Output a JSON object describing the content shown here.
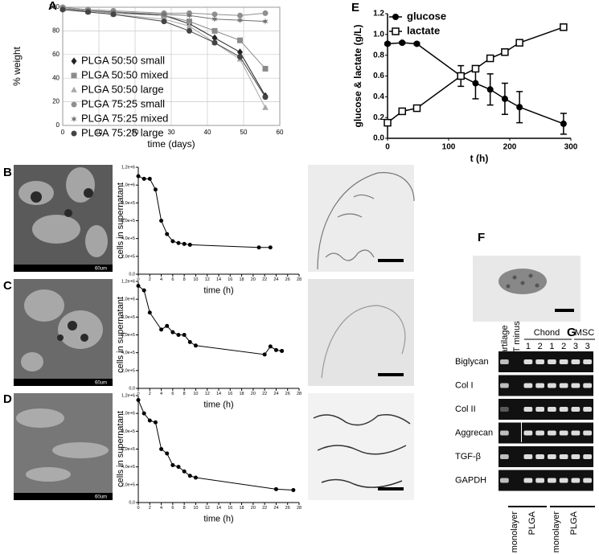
{
  "panel_labels": [
    "A",
    "B",
    "C",
    "D",
    "E",
    "F",
    "G"
  ],
  "sem_scale_labels": [
    "60um",
    "60um",
    "60um"
  ],
  "gel": {
    "columns": [
      "cartilage",
      "RT minus"
    ],
    "groups": [
      "Chond",
      "MSC"
    ],
    "lanes": [
      "1",
      "2",
      "1",
      "2",
      "3",
      "3"
    ],
    "rows": [
      "Biglycan",
      "Col I",
      "Col II",
      "Aggrecan",
      "TGF-β",
      "GAPDH"
    ],
    "conditions": [
      "monolayer",
      "PLGA",
      "monolayer",
      "PLGA"
    ]
  },
  "chart_data": [
    {
      "type": "line",
      "xlabel": "time (days)",
      "ylabel": "% weight",
      "x": [
        0,
        7,
        14,
        28,
        35,
        42,
        49,
        56
      ],
      "xlim": [
        0,
        60
      ],
      "xticks": [
        0,
        10,
        20,
        30,
        40,
        50,
        60
      ],
      "ylim": [
        0,
        100
      ],
      "yticks": [
        0,
        20,
        40,
        60,
        80,
        100
      ],
      "grid": true,
      "legend": "lower left",
      "series": [
        {
          "name": "PLGA 50:50 small",
          "color": "#222222",
          "marker": "diamond",
          "values": [
            99,
            97,
            96,
            93,
            86,
            74,
            62,
            25
          ]
        },
        {
          "name": "PLGA 50:50 mixed",
          "color": "#8a8a8a",
          "marker": "square",
          "values": [
            99,
            97,
            95,
            93,
            88,
            80,
            72,
            48
          ]
        },
        {
          "name": "PLGA 50:50 large",
          "color": "#a8a8a8",
          "marker": "triangle",
          "values": [
            99,
            96,
            94,
            90,
            84,
            70,
            56,
            15
          ]
        },
        {
          "name": "PLGA 75:25 small",
          "color": "#8f8f8f",
          "marker": "circle",
          "values": [
            100,
            98,
            97,
            95,
            95,
            94,
            93,
            95
          ]
        },
        {
          "name": "PLGA 75:25 mixed",
          "color": "#707070",
          "marker": "star",
          "values": [
            99,
            97,
            96,
            94,
            93,
            90,
            89,
            88
          ]
        },
        {
          "name": "PLGA 75:25 large",
          "color": "#444444",
          "marker": "circle",
          "values": [
            98,
            96,
            94,
            88,
            80,
            70,
            58,
            24
          ]
        }
      ]
    },
    {
      "type": "line",
      "xlabel": "time (h)",
      "ylabel": "cells in supernatant",
      "color": "#000000",
      "marker": "circle",
      "x": [
        0,
        1,
        2,
        3,
        4,
        5,
        6,
        7,
        8,
        9,
        21,
        23
      ],
      "values": [
        1100000,
        1070000,
        1070000,
        950000,
        600000,
        450000,
        370000,
        350000,
        340000,
        330000,
        300000,
        300000
      ],
      "xlim": [
        0,
        28
      ],
      "xticks": [
        0,
        2,
        4,
        6,
        8,
        10,
        12,
        14,
        16,
        18,
        20,
        22,
        24,
        26,
        28
      ],
      "ylim": [
        0,
        1200000
      ],
      "yticks": [
        {
          "value": 0,
          "label": "0,0"
        },
        {
          "value": 200000,
          "label": "2,0e+5"
        },
        {
          "value": 400000,
          "label": "4,0e+5"
        },
        {
          "value": 600000,
          "label": "6,0e+5"
        },
        {
          "value": 800000,
          "label": "8,0e+5"
        },
        {
          "value": 1000000,
          "label": "1,0e+6"
        },
        {
          "value": 1200000,
          "label": "1,2e+6"
        }
      ]
    },
    {
      "type": "line",
      "xlabel": "time (h)",
      "ylabel": "cells in supernatant",
      "color": "#000000",
      "marker": "circle",
      "x": [
        0,
        1,
        2,
        4,
        5,
        6,
        7,
        8,
        9,
        10,
        22,
        23,
        24,
        25
      ],
      "values": [
        1150000,
        1100000,
        850000,
        660000,
        700000,
        630000,
        600000,
        600000,
        520000,
        480000,
        380000,
        470000,
        430000,
        420000
      ],
      "xlim": [
        0,
        28
      ],
      "xticks": [
        0,
        2,
        4,
        6,
        8,
        10,
        12,
        14,
        16,
        18,
        20,
        22,
        24,
        26,
        28
      ],
      "ylim": [
        0,
        1200000
      ],
      "yticks": [
        {
          "value": 0,
          "label": "0,0"
        },
        {
          "value": 200000,
          "label": "2,0e+5"
        },
        {
          "value": 400000,
          "label": "4,0e+5"
        },
        {
          "value": 600000,
          "label": "6,0e+5"
        },
        {
          "value": 800000,
          "label": "8,0e+5"
        },
        {
          "value": 1000000,
          "label": "1,0e+6"
        },
        {
          "value": 1200000,
          "label": "1,2e+6"
        }
      ]
    },
    {
      "type": "line",
      "xlabel": "time (h)",
      "ylabel": "cells in supernatant",
      "color": "#000000",
      "marker": "circle",
      "x": [
        0,
        1,
        2,
        3,
        4,
        5,
        6,
        7,
        8,
        9,
        10,
        24,
        27
      ],
      "values": [
        1150000,
        1000000,
        920000,
        900000,
        600000,
        550000,
        420000,
        400000,
        350000,
        300000,
        280000,
        150000,
        140000
      ],
      "xlim": [
        0,
        28
      ],
      "xticks": [
        0,
        2,
        4,
        6,
        8,
        10,
        12,
        14,
        16,
        18,
        20,
        22,
        24,
        26,
        28
      ],
      "ylim": [
        0,
        1200000
      ],
      "yticks": [
        {
          "value": 0,
          "label": "0,0"
        },
        {
          "value": 200000,
          "label": "2,0e+5"
        },
        {
          "value": 400000,
          "label": "4,0e+5"
        },
        {
          "value": 600000,
          "label": "6,0e+5"
        },
        {
          "value": 800000,
          "label": "8,0e+5"
        },
        {
          "value": 1000000,
          "label": "1,0e+6"
        },
        {
          "value": 1200000,
          "label": "1,2e+6"
        }
      ]
    },
    {
      "type": "line",
      "xlabel": "t (h)",
      "ylabel": "glucose & lactate (g/L)",
      "legend": "upper left",
      "x": [
        0,
        24,
        48,
        120,
        144,
        168,
        192,
        216,
        288
      ],
      "xlim": [
        0,
        300
      ],
      "xticks": [
        0,
        100,
        200,
        300
      ],
      "ylim": [
        0,
        1.2
      ],
      "yticks": [
        {
          "value": 0,
          "label": "0.0"
        },
        0.2,
        0.4,
        0.6,
        0.8,
        {
          "value": 1,
          "label": "1.0"
        },
        1.2
      ],
      "series": [
        {
          "name": "glucose",
          "color": "#000000",
          "marker": "circle",
          "values": [
            0.91,
            0.92,
            0.91,
            0.6,
            0.53,
            0.47,
            0.38,
            0.3,
            0.14
          ],
          "errors": [
            0.01,
            0.01,
            0.01,
            0.1,
            0.15,
            0.15,
            0.15,
            0.15,
            0.1
          ]
        },
        {
          "name": "lactate",
          "color": "#000000",
          "marker": "square-open",
          "values": [
            0.15,
            0.26,
            0.29,
            0.6,
            0.67,
            0.77,
            0.83,
            0.92,
            1.07
          ]
        }
      ]
    }
  ]
}
